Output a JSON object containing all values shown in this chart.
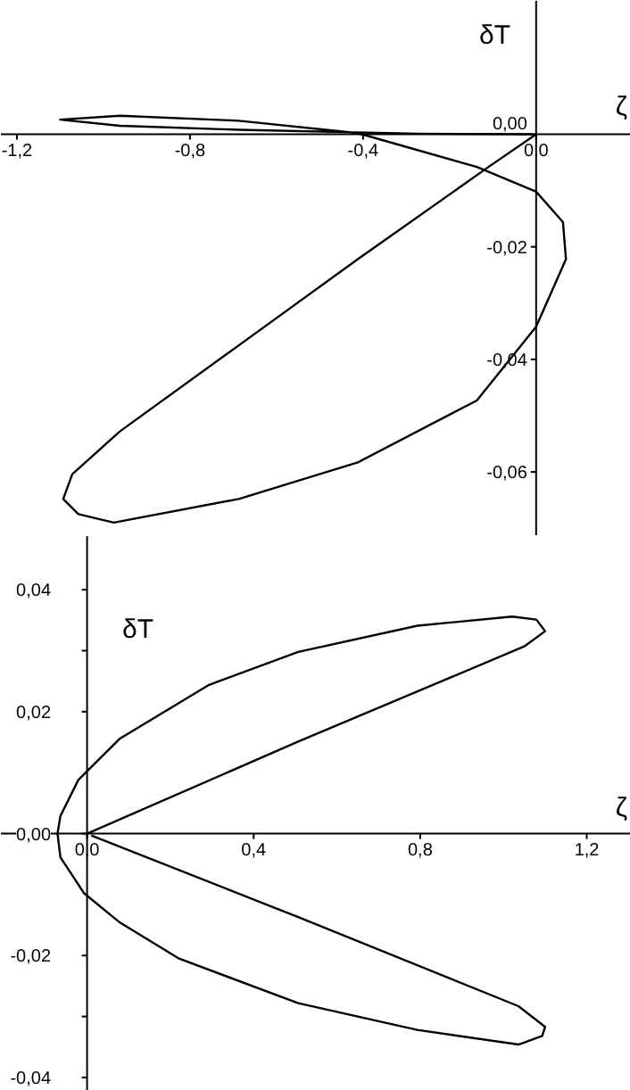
{
  "chart_data": [
    {
      "type": "line",
      "xlabel": "ζ",
      "ylabel": "δT",
      "xlim": [
        -1.237,
        0.219
      ],
      "ylim": [
        -0.0714,
        0.0237
      ],
      "xticks": [
        {
          "value": -1.2,
          "label": "-1,2"
        },
        {
          "value": -0.8,
          "label": "-0,8"
        },
        {
          "value": -0.4,
          "label": "-0,4"
        },
        {
          "value": 0,
          "label": "0,0"
        }
      ],
      "yticks": [
        {
          "value": 0,
          "label": "0,00"
        },
        {
          "value": -0.02,
          "label": "-0,02"
        },
        {
          "value": -0.04,
          "label": "-0,04"
        },
        {
          "value": -0.06,
          "label": "-0,06"
        }
      ],
      "x": [
        0,
        -0.11,
        -0.412,
        -0.687,
        -0.962,
        -1.072,
        -1.093,
        -1.058,
        -0.976,
        -0.687,
        -0.412,
        -0.137,
        0,
        0.069,
        0.062,
        0,
        -0.137,
        -0.412,
        -0.687,
        -0.962,
        -1.1,
        -0.962,
        -0.687,
        -0.275,
        -0.01
      ],
      "series": [
        {
          "color": "#000000",
          "values": [
            0,
            -0.0058,
            -0.0222,
            -0.0375,
            -0.0528,
            -0.0604,
            -0.0648,
            -0.0675,
            -0.069,
            -0.0648,
            -0.0583,
            -0.0473,
            -0.0342,
            -0.0222,
            -0.0156,
            -0.0102,
            -0.0058,
            0.0002,
            0.0024,
            0.0033,
            0.0026,
            0.0015,
            0.0008,
            0.0001,
            0.0
          ]
        }
      ]
    },
    {
      "type": "line",
      "xlabel": "ζ",
      "ylabel": "δT",
      "xlim": [
        -0.207,
        1.306
      ],
      "ylim": [
        -0.0422,
        0.0488
      ],
      "xticks": [
        {
          "value": 0,
          "label": "0,0"
        },
        {
          "value": 0.4,
          "label": "0,4"
        },
        {
          "value": 0.8,
          "label": "0,8"
        },
        {
          "value": 1.2,
          "label": "1,2"
        }
      ],
      "yticks": [
        {
          "value": 0.04,
          "label": "0,04"
        },
        {
          "value": 0.03,
          "label": null
        },
        {
          "value": 0.02,
          "label": "0,02"
        },
        {
          "value": 0,
          "label": "0,00"
        },
        {
          "value": -0.02,
          "label": "-0,02"
        },
        {
          "value": -0.03,
          "label": null
        },
        {
          "value": -0.04,
          "label": "-0,04"
        }
      ],
      "x": [
        0,
        0.507,
        1.05,
        1.1,
        1.079,
        1.021,
        0.793,
        0.507,
        0.293,
        0.079,
        -0.021,
        -0.064,
        -0.071,
        -0.064,
        -0.007,
        0.079,
        0.221,
        0.507,
        0.793,
        1.036,
        1.093,
        1.1,
        1.036,
        0.507,
        0.01
      ],
      "series": [
        {
          "color": "#000000",
          "values": [
            0,
            0.0151,
            0.0307,
            0.0332,
            0.0351,
            0.0356,
            0.0341,
            0.0298,
            0.0244,
            0.0156,
            0.0088,
            0.0029,
            0,
            -0.0039,
            -0.0098,
            -0.0146,
            -0.0205,
            -0.0278,
            -0.0322,
            -0.0346,
            -0.0332,
            -0.0317,
            -0.0283,
            -0.0137,
            -0.0003
          ]
        }
      ]
    }
  ]
}
